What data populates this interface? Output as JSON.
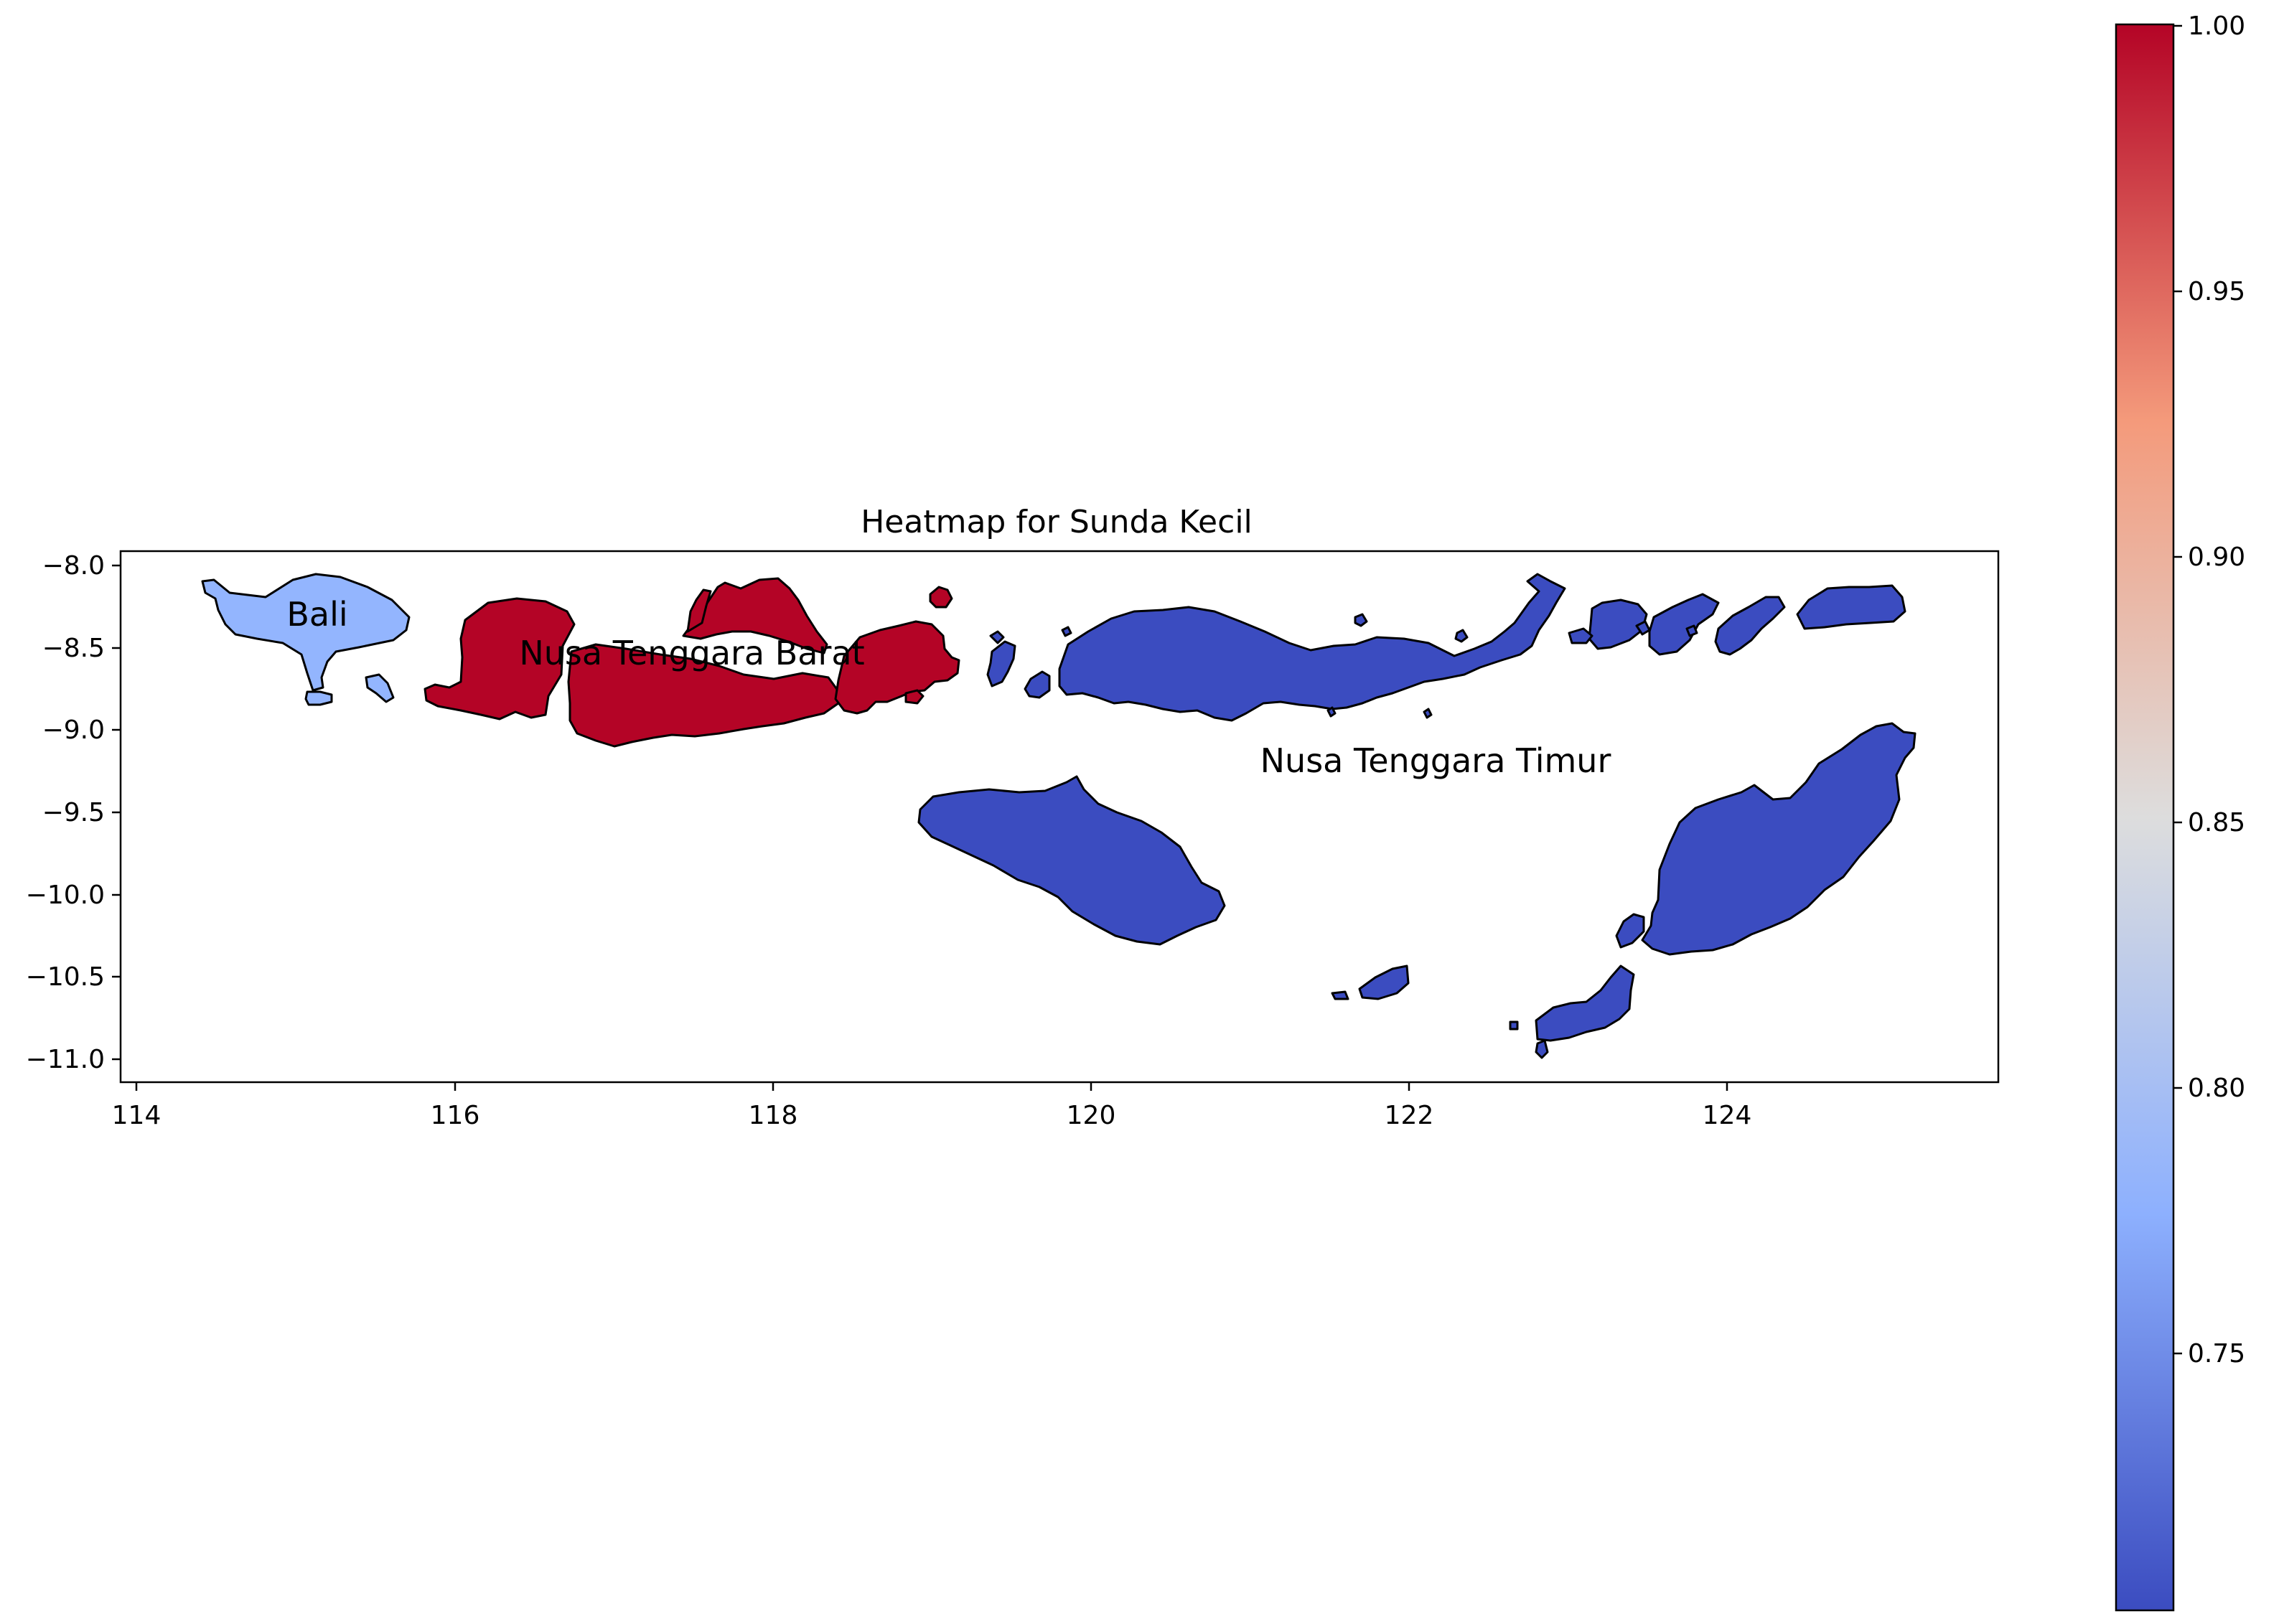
{
  "title": "Heatmap for Sunda Kecil",
  "x_ticks": [
    "114",
    "116",
    "118",
    "120",
    "122",
    "124"
  ],
  "y_ticks": [
    "−8.0",
    "−8.5",
    "−9.0",
    "−9.5",
    "−10.0",
    "−10.5",
    "−11.0"
  ],
  "colorbar": {
    "ticks": [
      "1.00",
      "0.95",
      "0.90",
      "0.85",
      "0.80",
      "0.75"
    ],
    "min": 0.7,
    "max": 1.0,
    "colormap": "coolwarm",
    "colors": [
      "#3b4cc0",
      "#8db0fe",
      "#dddddd",
      "#f49a7b",
      "#b40426"
    ]
  },
  "regions": [
    {
      "name": "Bali",
      "value": 0.79,
      "color": "#93b5fe"
    },
    {
      "name": "Nusa Tenggara Barat",
      "value": 1.0,
      "color": "#b40426"
    },
    {
      "name": "Nusa Tenggara Timur",
      "value": 0.7,
      "color": "#3b4cc0"
    }
  ]
}
